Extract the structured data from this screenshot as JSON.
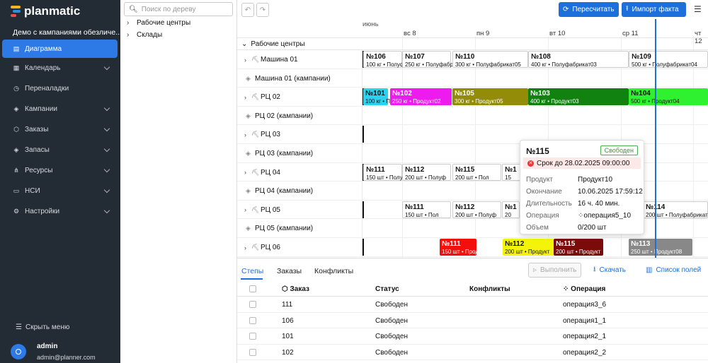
{
  "app": {
    "name": "planmatic",
    "project": "Демо с кампаниями обезличе..."
  },
  "sidebar": {
    "items": [
      {
        "label": "Диаграмма",
        "icon": "chart-icon",
        "active": true,
        "chevron": false
      },
      {
        "label": "Календарь",
        "icon": "calendar-icon",
        "active": false,
        "chevron": true
      },
      {
        "label": "Переналадки",
        "icon": "history-icon",
        "active": false,
        "chevron": false
      },
      {
        "label": "Кампании",
        "icon": "layers-icon",
        "active": false,
        "chevron": true
      },
      {
        "label": "Заказы",
        "icon": "box-icon",
        "active": false,
        "chevron": true
      },
      {
        "label": "Запасы",
        "icon": "layers-icon",
        "active": false,
        "chevron": true
      },
      {
        "label": "Ресурсы",
        "icon": "network-icon",
        "active": false,
        "chevron": true
      },
      {
        "label": "НСИ",
        "icon": "folder-icon",
        "active": false,
        "chevron": true
      },
      {
        "label": "Настройки",
        "icon": "gear-icon",
        "active": false,
        "chevron": true
      }
    ],
    "hide_menu": "Скрыть меню",
    "user": {
      "name": "admin",
      "email": "admin@planner.com"
    }
  },
  "tree": {
    "search_placeholder": "Поиск по дереву",
    "items": [
      "Рабочие центры",
      "Склады"
    ]
  },
  "toolbar": {
    "recalc": "Пересчитать",
    "import": "Импорт факта"
  },
  "gantt": {
    "month": "июнь",
    "days": [
      "вс 8",
      "пн 9",
      "вт 10",
      "ср 11",
      "чт 12"
    ],
    "section": "Рабочие центры",
    "rows": [
      {
        "label": "Машина 01",
        "expandable": true
      },
      {
        "label": "Машина 01 (кампании)",
        "expandable": false
      },
      {
        "label": "РЦ 02",
        "expandable": true
      },
      {
        "label": "РЦ 02 (кампании)",
        "expandable": false
      },
      {
        "label": "РЦ 03",
        "expandable": true
      },
      {
        "label": "РЦ 03 (кампании)",
        "expandable": false
      },
      {
        "label": "РЦ 04",
        "expandable": true
      },
      {
        "label": "РЦ 04 (кампании)",
        "expandable": false
      },
      {
        "label": "РЦ 05",
        "expandable": true
      },
      {
        "label": "РЦ 05 (кампании)",
        "expandable": false
      },
      {
        "label": "РЦ 06",
        "expandable": true
      }
    ],
    "bars": [
      {
        "row": 0,
        "n": "№106",
        "d": "100 кг • Полуф",
        "style": "white"
      },
      {
        "row": 0,
        "n": "№107",
        "d": "250 кг • Полуфабрикат",
        "style": "white"
      },
      {
        "row": 0,
        "n": "№110",
        "d": "300 кг • Полуфабрикат05",
        "style": "white"
      },
      {
        "row": 0,
        "n": "№108",
        "d": "400 кг • Полуфабрикат03",
        "style": "white"
      },
      {
        "row": 0,
        "n": "№109",
        "d": "500 кг • Полуфабрикат04",
        "style": "white"
      },
      {
        "row": 2,
        "n": "№101",
        "d": "100 кг • Прод",
        "color": "#29d3f0"
      },
      {
        "row": 2,
        "n": "№102",
        "d": "250 кг • Продукт02",
        "color": "#ee1bee"
      },
      {
        "row": 2,
        "n": "№105",
        "d": "300 кг • Продукт05",
        "color": "#928c08"
      },
      {
        "row": 2,
        "n": "№103",
        "d": "400 кг • Продукт03",
        "color": "#11820f"
      },
      {
        "row": 2,
        "n": "№104",
        "d": "500 кг • Продукт04",
        "color": "#2ff12f"
      },
      {
        "row": 6,
        "n": "№111",
        "d": "150 шт • Полуф",
        "style": "white"
      },
      {
        "row": 6,
        "n": "№112",
        "d": "200 шт • Полуф",
        "style": "white"
      },
      {
        "row": 6,
        "n": "№115",
        "d": "200 шт • Пол",
        "style": "white"
      },
      {
        "row": 6,
        "n": "№1",
        "d": "15",
        "style": "white"
      },
      {
        "row": 8,
        "n": "№111",
        "d": "150 шт • Пол",
        "style": "white"
      },
      {
        "row": 8,
        "n": "№112",
        "d": "200 шт • Полуф",
        "style": "white"
      },
      {
        "row": 8,
        "n": "№1",
        "d": "20",
        "style": "white"
      },
      {
        "row": 8,
        "n": "№114",
        "d": "200 шт • Полуфабрикат",
        "style": "white"
      },
      {
        "row": 10,
        "n": "№111",
        "d": "150 шт • Прод",
        "color": "#f40f0f"
      },
      {
        "row": 10,
        "n": "№112",
        "d": "200 шт • Продукт",
        "color": "#f4f40a"
      },
      {
        "row": 10,
        "n": "№115",
        "d": "200 шт • Продукт",
        "color": "#7a0b0b"
      },
      {
        "row": 10,
        "n": "№113",
        "d": "250 шт • Продукт08",
        "color": "#888888"
      }
    ]
  },
  "tooltip": {
    "title": "№115",
    "badge": "Свободен",
    "due": "Срок до 28.02.2025 09:00:00",
    "fields": [
      {
        "k": "Продукт",
        "v": "Продукт10"
      },
      {
        "k": "Окончание",
        "v": "10.06.2025 17:59:12"
      },
      {
        "k": "Длительность",
        "v": "16 ч. 40 мин."
      },
      {
        "k": "Операция",
        "v": "операция5_10"
      },
      {
        "k": "Объем",
        "v": "0/200 шт"
      }
    ]
  },
  "bottom": {
    "tabs": [
      "Степы",
      "Заказы",
      "Конфликты"
    ],
    "actions": {
      "run": "Выполнить",
      "download": "Скачать",
      "fields": "Список полей"
    },
    "columns": [
      "Заказ",
      "Статус",
      "Конфликты",
      "Операция"
    ],
    "rows": [
      {
        "order": "111",
        "status": "Свободен",
        "conflicts": "",
        "operation": "операция3_6"
      },
      {
        "order": "106",
        "status": "Свободен",
        "conflicts": "",
        "operation": "операция1_1"
      },
      {
        "order": "101",
        "status": "Свободен",
        "conflicts": "",
        "operation": "операция2_1"
      },
      {
        "order": "102",
        "status": "Свободен",
        "conflicts": "",
        "operation": "операция2_2"
      }
    ]
  }
}
